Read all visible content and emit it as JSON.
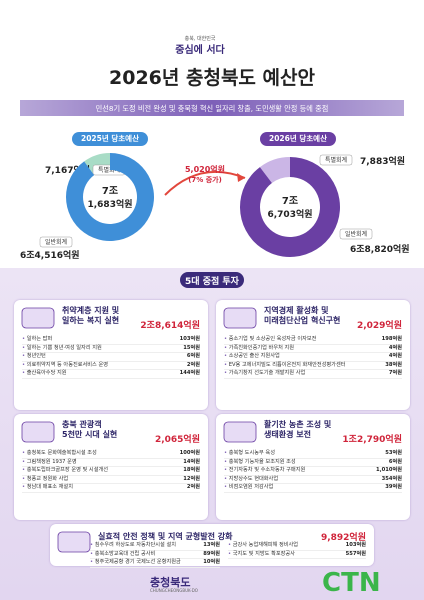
{
  "header": {
    "slogan_small": "충북, 대한민국",
    "slogan": "중심에 서다",
    "title": "2026년 충청북도 예산안",
    "subtitle": "민선8기 도정 비전 완성 및 충북형 혁신 일자리 창출, 도민생활 안정 등에 중점"
  },
  "budget_2025": {
    "label": "2025년 당초예산",
    "total_line1": "7조",
    "total_line2": "1,683억원",
    "segments": [
      {
        "name": "특별회계",
        "amount": "7,167억원",
        "value": 7167,
        "color": "#a8dcc6"
      },
      {
        "name": "일반회계",
        "amount": "6조4,516억원",
        "value": 64516,
        "color": "#3f8fd8"
      }
    ]
  },
  "increase": {
    "amount": "5,020억원",
    "rate": "(7% 증가)"
  },
  "budget_2026": {
    "label": "2026년 당초예산",
    "total_line1": "7조",
    "total_line2": "6,703억원",
    "segments": [
      {
        "name": "특별회계",
        "amount": "7,883억원",
        "value": 7883,
        "color": "#cbb6e6"
      },
      {
        "name": "일반회계",
        "amount": "6조8,820억원",
        "value": 68820,
        "color": "#6a3fa3"
      }
    ]
  },
  "section_title": "5대 중점 투자",
  "cards": [
    {
      "title_lines": [
        "취약계층 지원 및",
        "일하는 복지 실현"
      ],
      "total": "2조8,614억원",
      "items": [
        [
          "일하는 밥퍼",
          "103억원"
        ],
        [
          "일하는 기쁨 청년·여성 일자리 지원",
          "15억원"
        ],
        [
          "청년인턴",
          "6억원"
        ],
        [
          "의료취약지역 등 아동진료서비스 운영",
          "2억원"
        ],
        [
          "출산육아수당 지원",
          "144억원"
        ]
      ]
    },
    {
      "title_lines": [
        "지역경제 활성화 및",
        "미래첨단산업 혁신구현"
      ],
      "total": "2,029억원",
      "items": [
        [
          "중소기업 및 소상공인 육성자금 이자보전",
          "198억원"
        ],
        [
          "가족친화인증기업 바우처 지원",
          "4억원"
        ],
        [
          "소상공인 출산 지원사업",
          "4억원"
        ],
        [
          "EV용 고에너지밀도 리튬이온전지 화재안전성평가센터",
          "38억원"
        ],
        [
          "가속기창지 선도기술 개발지원 사업",
          "7억원"
        ]
      ]
    },
    {
      "title_lines": [
        "충북 관광객",
        "5천만 시대 실현"
      ],
      "total": "2,065억원",
      "items": [
        [
          "충청북도 문화예술복합시설 조성",
          "100억원"
        ],
        [
          "그림책정원 1937 운영",
          "14억원"
        ],
        [
          "충북도립파크골프장 운영 및 시설개선",
          "18억원"
        ],
        [
          "청풍교 정원화 사업",
          "12억원"
        ],
        [
          "청남대 매표소 재설치",
          "2억원"
        ]
      ]
    },
    {
      "title_lines": [
        "활기찬 농촌 조성 및",
        "생태환경 보전"
      ],
      "total": "1조2,790억원",
      "items": [
        [
          "충북형 도시농부 육성",
          "53억원"
        ],
        [
          "충북형 기능자율 보조지원 조성",
          "6억원"
        ],
        [
          "전기자동차 및 수소차동차 구매지원",
          "1,010억원"
        ],
        [
          "지방상수도 현대화사업",
          "354억원"
        ],
        [
          "비점오염원 저감사업",
          "39억원"
        ]
      ]
    },
    {
      "title_lines": [
        "실효적 안전 정책 및 지역 균형발전 강화"
      ],
      "total": "9,892억원",
      "items": [
        [
          "침수우려 하상도로 자동차단시설 설치",
          "13억원"
        ],
        [
          "충북소방교육대 건립 공사비",
          "89억원"
        ],
        [
          "청주국제공항 경기 국제노선 운항지원금",
          "10억원"
        ],
        [
          "금강사 농업재해피해 정비사업",
          "103억원"
        ],
        [
          "국지도 및 지방도 확포장공사",
          "557억원"
        ]
      ]
    }
  ],
  "footer": {
    "org": "충청북도",
    "org_en": "CHUNGCHEONGBUK-DO",
    "brand": "CTN"
  }
}
